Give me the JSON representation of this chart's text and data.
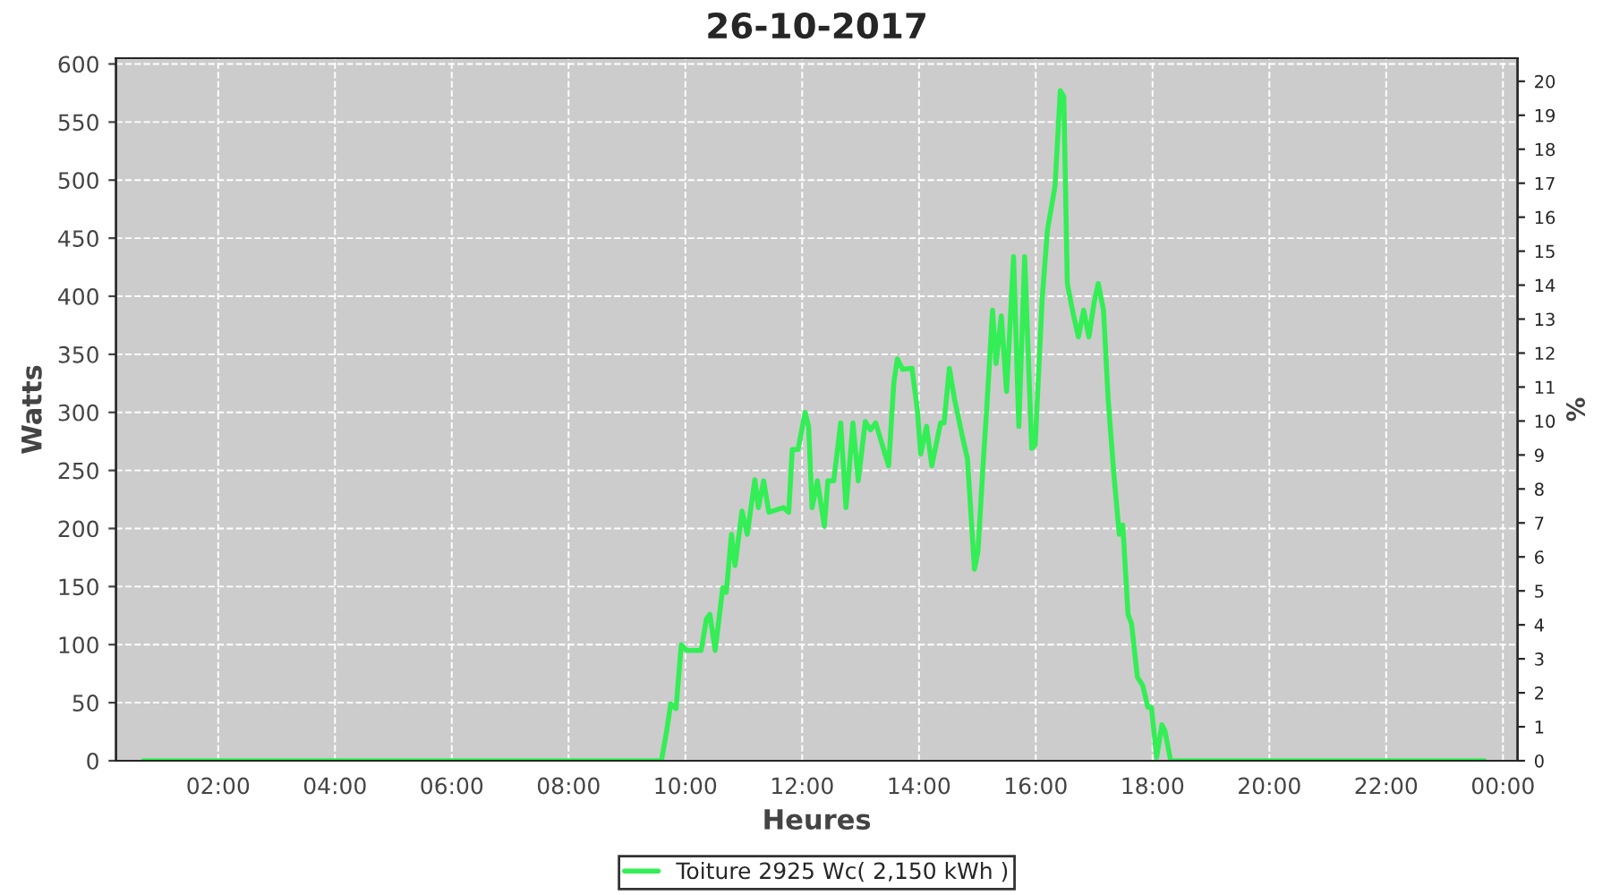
{
  "chart_data": {
    "type": "line",
    "title": "26-10-2017",
    "xlabel": "Heures",
    "ylabel": "Watts",
    "y2label": "%",
    "xlim": [
      0.25,
      24.25
    ],
    "xticks": [
      {
        "value": 2,
        "label": "02:00"
      },
      {
        "value": 4,
        "label": "04:00"
      },
      {
        "value": 6,
        "label": "06:00"
      },
      {
        "value": 8,
        "label": "08:00"
      },
      {
        "value": 10,
        "label": "10:00"
      },
      {
        "value": 12,
        "label": "12:00"
      },
      {
        "value": 14,
        "label": "14:00"
      },
      {
        "value": 16,
        "label": "16:00"
      },
      {
        "value": 18,
        "label": "18:00"
      },
      {
        "value": 20,
        "label": "20:00"
      },
      {
        "value": 22,
        "label": "22:00"
      },
      {
        "value": 24,
        "label": "00:00"
      }
    ],
    "ylim": [
      0,
      605
    ],
    "yticks": [
      0,
      50,
      100,
      150,
      200,
      250,
      300,
      350,
      400,
      450,
      500,
      550,
      600
    ],
    "y2lim": [
      0,
      20.68
    ],
    "y2ticks": [
      0,
      1,
      2,
      3,
      4,
      5,
      6,
      7,
      8,
      9,
      10,
      11,
      12,
      13,
      14,
      15,
      16,
      17,
      18,
      19,
      20
    ],
    "grid": true,
    "legend": "bottom",
    "marker": "none",
    "line_style": "solid",
    "series": [
      {
        "name": "Toiture 2925 Wc( 2,150 kWh )",
        "color": "#33ee55",
        "x": [
          0.72,
          9.59,
          9.68,
          9.75,
          9.84,
          9.93,
          10.02,
          10.27,
          10.36,
          10.42,
          10.51,
          10.64,
          10.7,
          10.79,
          10.85,
          10.97,
          11.06,
          11.19,
          11.25,
          11.34,
          11.43,
          11.68,
          11.77,
          11.83,
          11.93,
          12.05,
          12.11,
          12.17,
          12.26,
          12.38,
          12.44,
          12.54,
          12.66,
          12.75,
          12.87,
          12.96,
          13.08,
          13.17,
          13.26,
          13.39,
          13.48,
          13.57,
          13.63,
          13.72,
          13.88,
          13.97,
          14.03,
          14.13,
          14.22,
          14.37,
          14.43,
          14.52,
          14.61,
          14.74,
          14.83,
          14.95,
          15.01,
          15.1,
          15.16,
          15.26,
          15.32,
          15.41,
          15.5,
          15.62,
          15.71,
          15.81,
          15.93,
          15.99,
          16.11,
          16.2,
          16.33,
          16.42,
          16.48,
          16.54,
          16.64,
          16.73,
          16.82,
          16.91,
          17.0,
          17.07,
          17.16,
          17.24,
          17.34,
          17.43,
          17.49,
          17.58,
          17.64,
          17.74,
          17.83,
          17.92,
          17.98,
          18.07,
          18.16,
          18.21,
          18.31,
          23.68
        ],
        "values": [
          0,
          0,
          26,
          49,
          45,
          100,
          95,
          95,
          122,
          126,
          95,
          149,
          145,
          195,
          168,
          215,
          195,
          242,
          218,
          241,
          214,
          218,
          214,
          268,
          268,
          300,
          288,
          218,
          241,
          202,
          241,
          241,
          291,
          218,
          291,
          241,
          292,
          285,
          291,
          269,
          254,
          326,
          346,
          337,
          338,
          303,
          264,
          288,
          254,
          291,
          291,
          338,
          311,
          280,
          260,
          165,
          180,
          257,
          303,
          388,
          342,
          383,
          318,
          434,
          288,
          434,
          269,
          272,
          398,
          457,
          495,
          577,
          572,
          411,
          385,
          365,
          388,
          365,
          395,
          411,
          388,
          311,
          245,
          195,
          203,
          126,
          118,
          72,
          65,
          46,
          46,
          3,
          31,
          26,
          0,
          0
        ]
      }
    ]
  }
}
